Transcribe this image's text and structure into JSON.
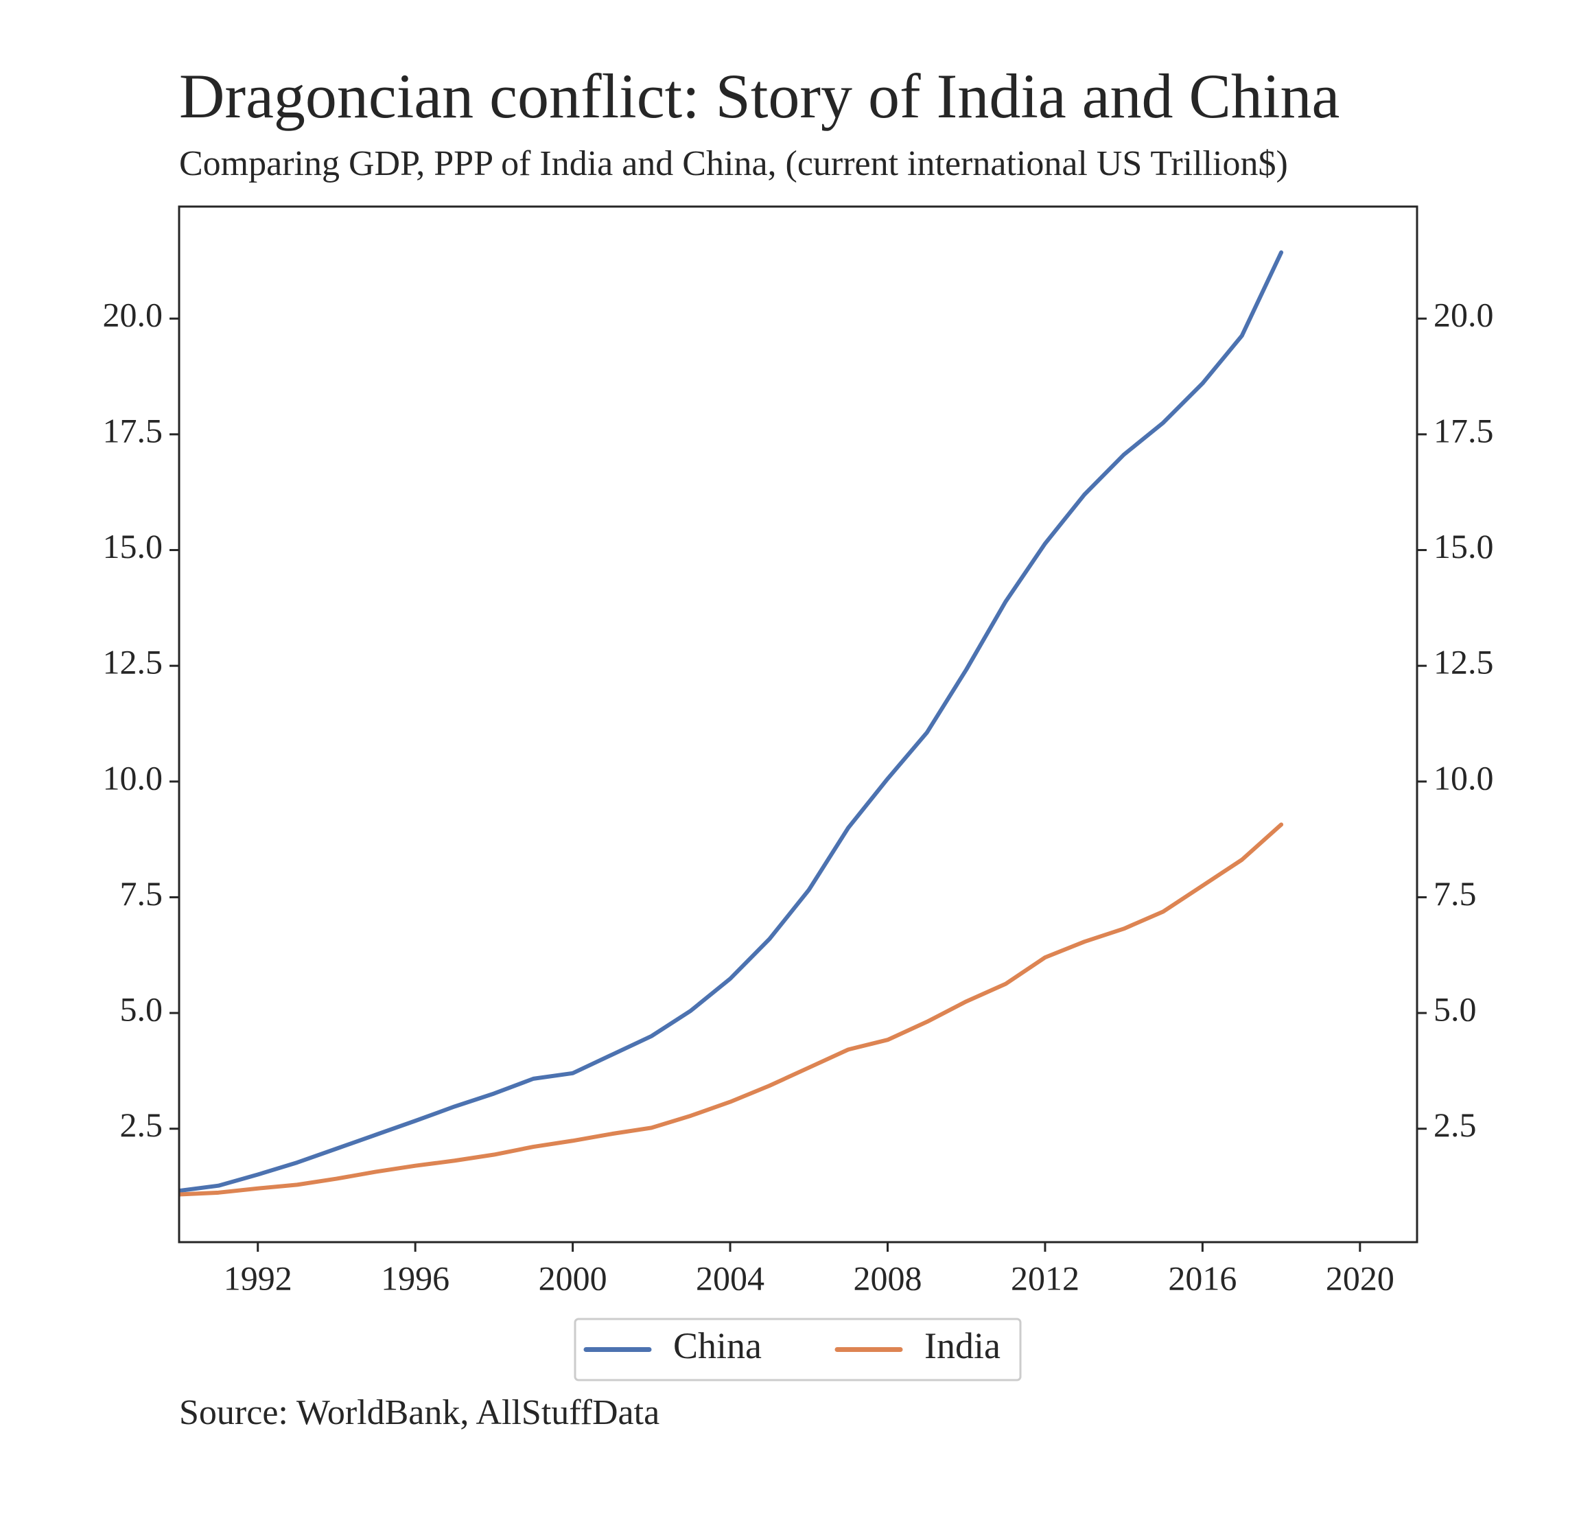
{
  "chart_data": {
    "type": "line",
    "title": "Dragoncian conflict: Story of India and China",
    "subtitle": "Comparing GDP, PPP of India and China, (current international US Trillion$)",
    "source": "Source: WorldBank, AllStuffData",
    "x": [
      1990,
      1991,
      1992,
      1993,
      1994,
      1995,
      1996,
      1997,
      1998,
      1999,
      2000,
      2001,
      2002,
      2003,
      2004,
      2005,
      2006,
      2007,
      2008,
      2009,
      2010,
      2011,
      2012,
      2013,
      2014,
      2015,
      2016,
      2017,
      2018
    ],
    "series": [
      {
        "name": "China",
        "color": "#4c72b0",
        "values": [
          1.16,
          1.27,
          1.51,
          1.77,
          2.07,
          2.37,
          2.67,
          2.98,
          3.26,
          3.58,
          3.7,
          4.1,
          4.5,
          5.05,
          5.74,
          6.6,
          7.66,
          9.0,
          10.06,
          11.06,
          12.42,
          13.89,
          15.14,
          16.2,
          17.06,
          17.75,
          18.6,
          19.63,
          21.43
        ]
      },
      {
        "name": "India",
        "color": "#dd8452",
        "values": [
          1.08,
          1.12,
          1.21,
          1.29,
          1.42,
          1.57,
          1.7,
          1.81,
          1.94,
          2.11,
          2.24,
          2.39,
          2.52,
          2.78,
          3.08,
          3.43,
          3.82,
          4.21,
          4.42,
          4.81,
          5.25,
          5.63,
          6.2,
          6.54,
          6.82,
          7.19,
          7.75,
          8.31,
          9.07
        ]
      }
    ],
    "xlim": [
      1990,
      2021.45
    ],
    "xticks": [
      1992,
      1996,
      2000,
      2004,
      2008,
      2012,
      2016,
      2020
    ],
    "ylim": [
      0.05,
      22.42
    ],
    "yticks": [
      2.5,
      {
        "value": 5,
        "label": "5.0"
      },
      7.5,
      {
        "value": 10,
        "label": "10.0"
      },
      12.5,
      {
        "value": 15,
        "label": "15.0"
      },
      17.5,
      {
        "value": 20,
        "label": "20.0"
      }
    ],
    "legend": "lower-center-outside"
  }
}
